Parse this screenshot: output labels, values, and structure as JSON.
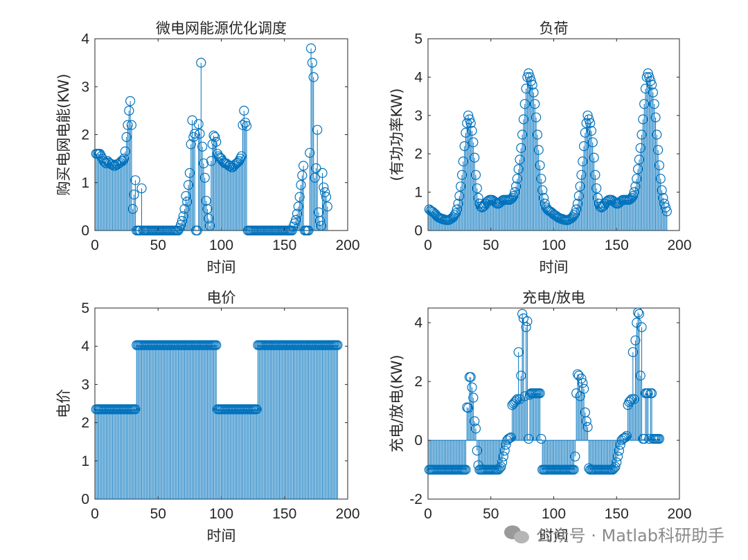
{
  "chart_data": [
    {
      "id": "grid",
      "type": "stem",
      "title": "微电网能源优化调度",
      "xlabel": "时间",
      "ylabel": "购买电网电能(KW)",
      "xlim": [
        0,
        200
      ],
      "ylim": [
        0,
        4
      ],
      "xticks": [
        0,
        50,
        100,
        150,
        200
      ],
      "yticks": [
        0,
        1,
        2,
        3,
        4
      ],
      "x_start": 1,
      "values": [
        1.6,
        1.6,
        1.6,
        1.6,
        1.55,
        1.5,
        1.45,
        1.42,
        1.4,
        1.45,
        1.42,
        1.4,
        1.38,
        1.38,
        1.35,
        1.35,
        1.38,
        1.38,
        1.4,
        1.42,
        1.45,
        1.45,
        1.5,
        1.65,
        1.95,
        2.2,
        2.5,
        2.7,
        2.2,
        0.45,
        0.75,
        1.05,
        0,
        0,
        0,
        0,
        0.88,
        0,
        0,
        0,
        0,
        0,
        0,
        0,
        0,
        0,
        0,
        0,
        0,
        0,
        0,
        0,
        0,
        0,
        0,
        0,
        0,
        0,
        0,
        0,
        0,
        0,
        0,
        0,
        0,
        0,
        0.05,
        0.12,
        0.2,
        0.3,
        0.45,
        0.72,
        0.6,
        0.95,
        1.2,
        1.8,
        2.3,
        1.95,
        2.02,
        0,
        0,
        2.22,
        2.02,
        3.5,
        1.75,
        1.4,
        1.1,
        0.62,
        0.45,
        0.25,
        0.1,
        1.45,
        1.8,
        1.98,
        1.95,
        1.85,
        1.6,
        1.55,
        1.52,
        1.5,
        1.45,
        1.42,
        1.4,
        1.4,
        1.38,
        1.35,
        1.35,
        1.32,
        1.32,
        1.35,
        1.38,
        1.4,
        1.42,
        1.45,
        1.5,
        1.55,
        2.2,
        2.5,
        2.25,
        2.18,
        0,
        0,
        0,
        0,
        0,
        0,
        0,
        0,
        0,
        0,
        0,
        0,
        0,
        0,
        0,
        0,
        0,
        0,
        0,
        0,
        0,
        0,
        0,
        0,
        0,
        0,
        0,
        0,
        0,
        0,
        0,
        0,
        0,
        0,
        0,
        0,
        0.08,
        0.15,
        0.22,
        0.35,
        0.5,
        0.7,
        0.95,
        1.15,
        1.35,
        0,
        0,
        0,
        0,
        1.62,
        3.8,
        3.5,
        3.2,
        1.1,
        1.3,
        2.1,
        0.38,
        0.2,
        0.1,
        1.2,
        0.9,
        0.8,
        0.7,
        0.5
      ]
    },
    {
      "id": "load",
      "type": "stem",
      "title": "负荷",
      "xlabel": "时间",
      "ylabel": "(有功功率KW)",
      "xlim": [
        0,
        200
      ],
      "ylim": [
        0,
        5
      ],
      "xticks": [
        0,
        50,
        100,
        150,
        200
      ],
      "yticks": [
        0,
        1,
        2,
        3,
        4,
        5
      ],
      "x_start": 1,
      "values": [
        0.55,
        0.52,
        0.5,
        0.48,
        0.45,
        0.42,
        0.38,
        0.35,
        0.33,
        0.32,
        0.3,
        0.3,
        0.28,
        0.28,
        0.27,
        0.27,
        0.28,
        0.3,
        0.32,
        0.35,
        0.4,
        0.45,
        0.55,
        0.7,
        0.9,
        1.15,
        1.45,
        1.8,
        2.2,
        2.55,
        2.8,
        3.0,
        2.9,
        2.8,
        2.6,
        2.3,
        1.9,
        1.45,
        1.1,
        0.85,
        0.7,
        0.62,
        0.6,
        0.62,
        0.65,
        0.7,
        0.75,
        0.78,
        0.8,
        0.8,
        0.8,
        0.78,
        0.75,
        0.72,
        0.7,
        0.7,
        0.72,
        0.75,
        0.78,
        0.8,
        0.8,
        0.8,
        0.8,
        0.8,
        0.8,
        0.82,
        0.85,
        0.9,
        1.0,
        1.15,
        1.35,
        1.6,
        1.85,
        2.15,
        2.5,
        2.9,
        3.3,
        3.7,
        4.0,
        4.1,
        4.0,
        3.9,
        3.8,
        3.6,
        3.3,
        2.95,
        2.5,
        2.1,
        1.7,
        1.35,
        1.05,
        0.85,
        0.7,
        0.6,
        0.55,
        0.52,
        0.5,
        0.48,
        0.45,
        0.42,
        0.4,
        0.38,
        0.35,
        0.33,
        0.32,
        0.3,
        0.3,
        0.28,
        0.28,
        0.27,
        0.27,
        0.28,
        0.3,
        0.32,
        0.35,
        0.4,
        0.45,
        0.55,
        0.7,
        0.9,
        1.15,
        1.45,
        1.8,
        2.2,
        2.55,
        2.8,
        3.0,
        2.9,
        2.8,
        2.6,
        2.3,
        1.9,
        1.45,
        1.1,
        0.85,
        0.7,
        0.62,
        0.6,
        0.62,
        0.65,
        0.7,
        0.75,
        0.78,
        0.8,
        0.8,
        0.8,
        0.78,
        0.75,
        0.72,
        0.7,
        0.7,
        0.72,
        0.75,
        0.78,
        0.8,
        0.8,
        0.8,
        0.8,
        0.8,
        0.8,
        0.82,
        0.85,
        0.9,
        1.0,
        1.15,
        1.35,
        1.6,
        1.85,
        2.15,
        2.5,
        2.9,
        3.3,
        3.7,
        4.0,
        4.1,
        4.0,
        3.9,
        3.8,
        3.6,
        3.3,
        2.95,
        2.5,
        2.1,
        1.7,
        1.35,
        1.05,
        0.85,
        0.7,
        0.6,
        0.5
      ]
    },
    {
      "id": "price",
      "type": "stem",
      "title": "电价",
      "xlabel": "时间",
      "ylabel": "电价",
      "xlim": [
        0,
        200
      ],
      "ylim": [
        0,
        5
      ],
      "xticks": [
        0,
        50,
        100,
        150,
        200
      ],
      "yticks": [
        0,
        1,
        2,
        3,
        4,
        5
      ],
      "x_start": 1,
      "segments": [
        {
          "from": 1,
          "to": 32,
          "value": 2.35
        },
        {
          "from": 33,
          "to": 96,
          "value": 4.03
        },
        {
          "from": 97,
          "to": 128,
          "value": 2.35
        },
        {
          "from": 129,
          "to": 192,
          "value": 4.03
        }
      ]
    },
    {
      "id": "battery",
      "type": "stem",
      "title": "充电/放电",
      "xlabel": "时间",
      "ylabel": "充电/放电(KW)",
      "xlim": [
        0,
        200
      ],
      "ylim": [
        -2,
        4.5
      ],
      "xticks": [
        0,
        50,
        100,
        150,
        200
      ],
      "yticks": [
        -2,
        0,
        2,
        4
      ],
      "x_start": 1,
      "values": [
        -1,
        -1,
        -1,
        -1,
        -1,
        -1,
        -1,
        -1,
        -1,
        -1,
        -1,
        -1,
        -1,
        -1,
        -1,
        -1,
        -1,
        -1,
        -1,
        -1,
        -1,
        -1,
        -1,
        -1,
        -1,
        -1,
        -1,
        -1,
        -1,
        -1,
        1.12,
        1.1,
        2.15,
        2.15,
        1.8,
        1.45,
        0.65,
        0.4,
        -0.35,
        -0.85,
        -1,
        -1,
        -1,
        -1,
        -1,
        -1,
        -1,
        -1,
        -1,
        -1,
        -1,
        -1,
        -1,
        -1,
        -1,
        -1,
        -0.95,
        -0.9,
        -0.75,
        -0.55,
        -0.35,
        -0.15,
        0,
        0.05,
        0.08,
        0.1,
        1.2,
        1.25,
        1.3,
        1.35,
        1.4,
        3.0,
        1.4,
        2.2,
        4.3,
        4.15,
        1.5,
        3.85,
        4.05,
        0.05,
        1.55,
        1.6,
        1.6,
        1.6,
        1.6,
        1.6,
        1.6,
        1.6,
        1.6,
        0.05,
        -1,
        -1,
        -1,
        -1,
        -1,
        -1,
        -1,
        -1,
        -1,
        -1,
        -1,
        -1,
        -1,
        -1,
        -1,
        -1,
        -1,
        -1,
        -1,
        -1,
        -1,
        -1,
        -1,
        -1,
        -1,
        -1,
        -0.55,
        1.6,
        2.25,
        2.2,
        1.5,
        2.1,
        1.95,
        1.75,
        0.95,
        0.65,
        0.45,
        -0.95,
        -1,
        -1,
        -1,
        -1,
        -1,
        -1,
        -1,
        -1,
        -1,
        -1,
        -1,
        -1,
        -1,
        -1,
        -1,
        -1,
        -1,
        -1,
        -1,
        -0.95,
        -0.9,
        -0.75,
        -0.55,
        -0.35,
        -0.15,
        0,
        0.05,
        0.08,
        0.1,
        0.15,
        1.2,
        1.3,
        1.35,
        1.4,
        3.0,
        1.4,
        3.4,
        4.0,
        4.35,
        4.3,
        2.2,
        3.85,
        0.05,
        0.05,
        1.6,
        1.6,
        1.6,
        0.05,
        1.6,
        1.6,
        0.05,
        0.05,
        0.05,
        0.05,
        0.05,
        0.05
      ]
    }
  ],
  "watermark": {
    "text": "公众号 · Matlab科研助手",
    "icon": "wechat-icon"
  },
  "colors": {
    "stem": "#0072BD",
    "axis": "#262626",
    "background": "#ffffff"
  }
}
